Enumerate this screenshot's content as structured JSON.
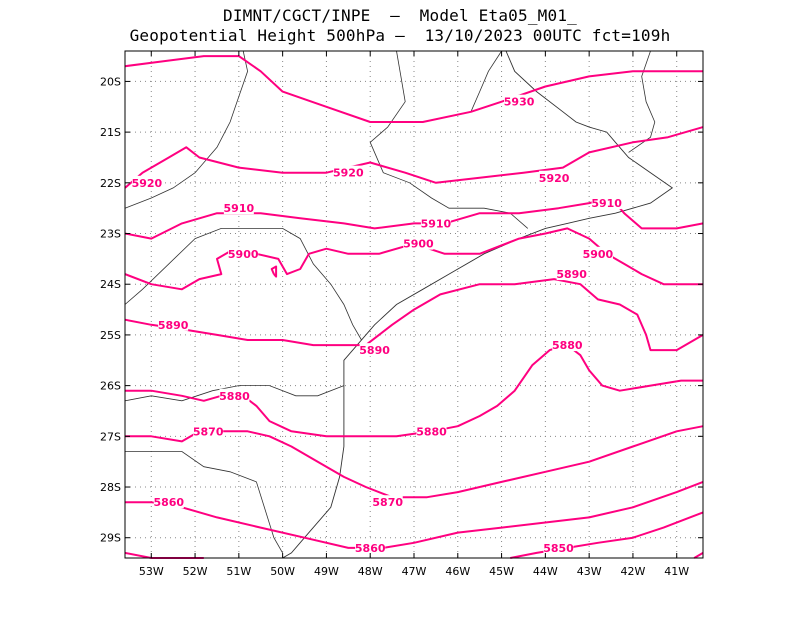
{
  "title_line1": "DIMNT/CGCT/INPE  –  Model Eta05_M01_",
  "title_line2": "Geopotential Height 500hPa –  13/10/2023 00UTC fct=109h",
  "colors": {
    "contour": "#ff0080",
    "coast": "#333333",
    "grid": "#888888",
    "frame": "#000000"
  },
  "map": {
    "lon_range": [
      -53.6,
      -40.4
    ],
    "lat_range": [
      -29.4,
      -19.4
    ],
    "lat_labels": [
      "20S",
      "21S",
      "22S",
      "23S",
      "24S",
      "25S",
      "26S",
      "27S",
      "28S",
      "29S"
    ],
    "lon_labels": [
      "53W",
      "52W",
      "51W",
      "50W",
      "49W",
      "48W",
      "47W",
      "46W",
      "45W",
      "44W",
      "43W",
      "42W",
      "41W"
    ],
    "contour_labels": [
      {
        "text": "5930",
        "lon": -44.6,
        "lat": -20.4
      },
      {
        "text": "5920",
        "lon": -53.1,
        "lat": -22.0
      },
      {
        "text": "5920",
        "lon": -48.5,
        "lat": -21.8
      },
      {
        "text": "5920",
        "lon": -43.8,
        "lat": -21.9
      },
      {
        "text": "5910",
        "lon": -51.0,
        "lat": -22.5
      },
      {
        "text": "5910",
        "lon": -46.5,
        "lat": -22.8
      },
      {
        "text": "5910",
        "lon": -42.6,
        "lat": -22.4
      },
      {
        "text": "5900",
        "lon": -50.9,
        "lat": -23.4
      },
      {
        "text": "5900",
        "lon": -46.9,
        "lat": -23.2
      },
      {
        "text": "5900",
        "lon": -42.8,
        "lat": -23.4
      },
      {
        "text": "5890",
        "lon": -43.4,
        "lat": -23.8
      },
      {
        "text": "5890",
        "lon": -52.5,
        "lat": -24.8
      },
      {
        "text": "5890",
        "lon": -47.9,
        "lat": -25.3
      },
      {
        "text": "5880",
        "lon": -43.5,
        "lat": -25.2
      },
      {
        "text": "5880",
        "lon": -51.1,
        "lat": -26.2
      },
      {
        "text": "5880",
        "lon": -46.6,
        "lat": -26.9
      },
      {
        "text": "5870",
        "lon": -51.7,
        "lat": -26.9
      },
      {
        "text": "5870",
        "lon": -47.6,
        "lat": -28.3
      },
      {
        "text": "5860",
        "lon": -52.6,
        "lat": -28.3
      },
      {
        "text": "5860",
        "lon": -48.0,
        "lat": -29.2
      },
      {
        "text": "5850",
        "lon": -43.7,
        "lat": -29.2
      }
    ],
    "contours": [
      {
        "level": 5930,
        "points": [
          [
            -53.6,
            -19.7
          ],
          [
            -52.7,
            -19.6
          ],
          [
            -51.8,
            -19.5
          ],
          [
            -51.0,
            -19.5
          ],
          [
            -50.5,
            -19.8
          ],
          [
            -50.0,
            -20.2
          ],
          [
            -49.0,
            -20.5
          ],
          [
            -48.0,
            -20.8
          ],
          [
            -46.8,
            -20.8
          ],
          [
            -45.7,
            -20.6
          ],
          [
            -45.0,
            -20.4
          ],
          [
            -44.0,
            -20.1
          ],
          [
            -43.0,
            -19.9
          ],
          [
            -42.0,
            -19.8
          ],
          [
            -41.0,
            -19.8
          ],
          [
            -40.4,
            -19.8
          ]
        ]
      },
      {
        "level": 5920,
        "points": [
          [
            -53.6,
            -22.1
          ],
          [
            -53.2,
            -21.8
          ],
          [
            -52.6,
            -21.5
          ],
          [
            -52.2,
            -21.3
          ],
          [
            -51.9,
            -21.5
          ],
          [
            -51.0,
            -21.7
          ],
          [
            -50.0,
            -21.8
          ],
          [
            -49.0,
            -21.8
          ],
          [
            -48.0,
            -21.6
          ],
          [
            -47.2,
            -21.8
          ],
          [
            -46.5,
            -22.0
          ],
          [
            -45.5,
            -21.9
          ],
          [
            -44.5,
            -21.8
          ],
          [
            -43.6,
            -21.7
          ],
          [
            -43.0,
            -21.4
          ],
          [
            -42.0,
            -21.2
          ],
          [
            -41.2,
            -21.1
          ],
          [
            -40.4,
            -20.9
          ]
        ]
      },
      {
        "level": 5910,
        "points": [
          [
            -53.6,
            -23.0
          ],
          [
            -53.0,
            -23.1
          ],
          [
            -52.3,
            -22.8
          ],
          [
            -51.5,
            -22.6
          ],
          [
            -50.5,
            -22.6
          ],
          [
            -49.6,
            -22.7
          ],
          [
            -48.6,
            -22.8
          ],
          [
            -47.9,
            -22.9
          ],
          [
            -47.0,
            -22.8
          ],
          [
            -46.3,
            -22.8
          ],
          [
            -45.5,
            -22.6
          ],
          [
            -44.6,
            -22.6
          ],
          [
            -43.7,
            -22.5
          ],
          [
            -43.0,
            -22.4
          ],
          [
            -42.5,
            -22.3
          ],
          [
            -42.2,
            -22.6
          ],
          [
            -41.8,
            -22.9
          ],
          [
            -41.0,
            -22.9
          ],
          [
            -40.4,
            -22.8
          ]
        ]
      },
      {
        "level": 5900,
        "points": [
          [
            -53.6,
            -23.8
          ],
          [
            -53.0,
            -24.0
          ],
          [
            -52.3,
            -24.1
          ],
          [
            -51.9,
            -23.9
          ],
          [
            -51.4,
            -23.8
          ],
          [
            -51.5,
            -23.5
          ],
          [
            -51.1,
            -23.3
          ],
          [
            -50.6,
            -23.4
          ],
          [
            -50.1,
            -23.5
          ],
          [
            -49.9,
            -23.8
          ],
          [
            -49.6,
            -23.7
          ],
          [
            -49.4,
            -23.4
          ],
          [
            -49.0,
            -23.3
          ],
          [
            -48.5,
            -23.4
          ],
          [
            -47.8,
            -23.4
          ],
          [
            -47.0,
            -23.2
          ],
          [
            -46.3,
            -23.4
          ],
          [
            -45.5,
            -23.4
          ],
          [
            -44.6,
            -23.1
          ],
          [
            -44.0,
            -23.0
          ],
          [
            -43.5,
            -22.9
          ],
          [
            -43.0,
            -23.1
          ],
          [
            -42.6,
            -23.4
          ],
          [
            -42.2,
            -23.6
          ],
          [
            -41.8,
            -23.8
          ],
          [
            -41.3,
            -24.0
          ],
          [
            -40.8,
            -24.0
          ],
          [
            -40.4,
            -24.0
          ]
        ]
      },
      {
        "level": 5890,
        "points": [
          [
            -53.6,
            -24.7
          ],
          [
            -53.0,
            -24.8
          ],
          [
            -52.2,
            -24.9
          ],
          [
            -51.5,
            -25.0
          ],
          [
            -50.8,
            -25.1
          ],
          [
            -50.0,
            -25.1
          ],
          [
            -49.3,
            -25.2
          ],
          [
            -48.6,
            -25.2
          ],
          [
            -48.1,
            -25.2
          ],
          [
            -47.8,
            -25.0
          ],
          [
            -47.5,
            -24.8
          ],
          [
            -47.0,
            -24.5
          ],
          [
            -46.4,
            -24.2
          ],
          [
            -45.5,
            -24.0
          ],
          [
            -44.7,
            -24.0
          ],
          [
            -43.8,
            -23.9
          ],
          [
            -43.2,
            -24.0
          ],
          [
            -42.8,
            -24.3
          ],
          [
            -42.3,
            -24.4
          ],
          [
            -41.9,
            -24.6
          ],
          [
            -41.7,
            -25.0
          ],
          [
            -41.6,
            -25.3
          ],
          [
            -41.0,
            -25.3
          ],
          [
            -40.4,
            -25.0
          ]
        ]
      },
      {
        "level": 5880,
        "points": [
          [
            -53.6,
            -26.1
          ],
          [
            -53.0,
            -26.1
          ],
          [
            -52.3,
            -26.2
          ],
          [
            -51.8,
            -26.3
          ],
          [
            -51.4,
            -26.2
          ],
          [
            -50.9,
            -26.2
          ],
          [
            -50.6,
            -26.4
          ],
          [
            -50.3,
            -26.7
          ],
          [
            -49.8,
            -26.9
          ],
          [
            -49.0,
            -27.0
          ],
          [
            -48.2,
            -27.0
          ],
          [
            -47.4,
            -27.0
          ],
          [
            -46.6,
            -26.9
          ],
          [
            -46.0,
            -26.8
          ],
          [
            -45.5,
            -26.6
          ],
          [
            -45.1,
            -26.4
          ],
          [
            -44.7,
            -26.1
          ],
          [
            -44.3,
            -25.6
          ],
          [
            -43.9,
            -25.3
          ],
          [
            -43.5,
            -25.2
          ],
          [
            -43.2,
            -25.4
          ],
          [
            -43.0,
            -25.7
          ],
          [
            -42.7,
            -26.0
          ],
          [
            -42.3,
            -26.1
          ],
          [
            -41.6,
            -26.0
          ],
          [
            -40.9,
            -25.9
          ],
          [
            -40.4,
            -25.9
          ]
        ]
      },
      {
        "level": 5870,
        "points": [
          [
            -53.6,
            -27.0
          ],
          [
            -53.0,
            -27.0
          ],
          [
            -52.3,
            -27.1
          ],
          [
            -51.9,
            -26.9
          ],
          [
            -51.4,
            -26.9
          ],
          [
            -50.8,
            -26.9
          ],
          [
            -50.3,
            -27.0
          ],
          [
            -49.8,
            -27.2
          ],
          [
            -49.2,
            -27.5
          ],
          [
            -48.6,
            -27.8
          ],
          [
            -48.1,
            -28.0
          ],
          [
            -47.5,
            -28.2
          ],
          [
            -46.7,
            -28.2
          ],
          [
            -46.0,
            -28.1
          ],
          [
            -45.0,
            -27.9
          ],
          [
            -44.0,
            -27.7
          ],
          [
            -43.0,
            -27.5
          ],
          [
            -42.0,
            -27.2
          ],
          [
            -41.0,
            -26.9
          ],
          [
            -40.4,
            -26.8
          ]
        ]
      },
      {
        "level": 5860,
        "points": [
          [
            -53.6,
            -28.3
          ],
          [
            -53.0,
            -28.3
          ],
          [
            -52.3,
            -28.4
          ],
          [
            -51.5,
            -28.6
          ],
          [
            -50.5,
            -28.8
          ],
          [
            -49.5,
            -29.0
          ],
          [
            -48.5,
            -29.2
          ],
          [
            -47.7,
            -29.2
          ],
          [
            -47.0,
            -29.1
          ],
          [
            -46.0,
            -28.9
          ],
          [
            -45.0,
            -28.8
          ],
          [
            -44.0,
            -28.7
          ],
          [
            -43.0,
            -28.6
          ],
          [
            -42.0,
            -28.4
          ],
          [
            -41.0,
            -28.1
          ],
          [
            -40.4,
            -27.9
          ]
        ]
      },
      {
        "level": 5850,
        "points": [
          [
            -53.6,
            -29.3
          ],
          [
            -53.0,
            -29.4
          ],
          [
            -52.3,
            -29.4
          ],
          [
            -51.8,
            -29.5
          ]
        ]
      },
      {
        "level": 5850,
        "points": [
          [
            -44.8,
            -29.5
          ],
          [
            -44.2,
            -29.3
          ],
          [
            -43.5,
            -29.2
          ],
          [
            -42.8,
            -29.1
          ],
          [
            -42.0,
            -29.0
          ],
          [
            -41.3,
            -28.8
          ],
          [
            -40.7,
            -28.6
          ],
          [
            -40.4,
            -28.5
          ]
        ]
      },
      {
        "level": 5850,
        "points": [
          [
            -40.6,
            -29.4
          ],
          [
            -40.4,
            -29.3
          ]
        ]
      },
      {
        "level": 5900,
        "points": [
          [
            -50.2,
            -23.8
          ],
          [
            -50.25,
            -23.7
          ],
          [
            -50.15,
            -23.65
          ],
          [
            -50.15,
            -23.85
          ],
          [
            -50.2,
            -23.8
          ]
        ]
      }
    ],
    "coastline": [
      [
        -44.9,
        -19.4
      ],
      [
        -44.7,
        -19.8
      ],
      [
        -44.2,
        -20.2
      ],
      [
        -43.6,
        -20.6
      ],
      [
        -43.3,
        -20.8
      ],
      [
        -43.0,
        -20.9
      ],
      [
        -42.6,
        -21.0
      ],
      [
        -42.4,
        -21.2
      ],
      [
        -42.1,
        -21.5
      ],
      [
        -41.6,
        -21.8
      ],
      [
        -41.1,
        -22.1
      ],
      [
        -41.6,
        -22.4
      ],
      [
        -42.4,
        -22.6
      ],
      [
        -43.0,
        -22.7
      ],
      [
        -43.5,
        -22.8
      ],
      [
        -44.0,
        -22.9
      ],
      [
        -44.6,
        -23.1
      ],
      [
        -45.4,
        -23.4
      ],
      [
        -46.2,
        -23.8
      ],
      [
        -46.8,
        -24.1
      ],
      [
        -47.4,
        -24.4
      ],
      [
        -47.9,
        -24.8
      ],
      [
        -48.3,
        -25.2
      ],
      [
        -48.6,
        -25.5
      ],
      [
        -48.6,
        -26.0
      ],
      [
        -48.6,
        -26.6
      ],
      [
        -48.6,
        -27.2
      ],
      [
        -48.7,
        -27.8
      ],
      [
        -48.9,
        -28.4
      ],
      [
        -49.4,
        -28.9
      ],
      [
        -49.8,
        -29.3
      ],
      [
        -50.0,
        -29.5
      ]
    ],
    "borders": [
      [
        [
          -53.6,
          -22.5
        ],
        [
          -53.0,
          -22.3
        ],
        [
          -52.5,
          -22.1
        ],
        [
          -52.0,
          -21.8
        ],
        [
          -51.5,
          -21.3
        ],
        [
          -51.2,
          -20.8
        ],
        [
          -51.0,
          -20.3
        ],
        [
          -50.8,
          -19.8
        ],
        [
          -50.9,
          -19.4
        ]
      ],
      [
        [
          -53.6,
          -24.4
        ],
        [
          -53.2,
          -24.1
        ],
        [
          -52.6,
          -23.6
        ],
        [
          -52.0,
          -23.1
        ],
        [
          -51.4,
          -22.9
        ],
        [
          -50.8,
          -22.9
        ],
        [
          -50.0,
          -22.9
        ],
        [
          -49.6,
          -23.1
        ],
        [
          -49.3,
          -23.6
        ],
        [
          -48.9,
          -24.0
        ],
        [
          -48.6,
          -24.4
        ],
        [
          -48.4,
          -24.8
        ],
        [
          -48.2,
          -25.1
        ]
      ],
      [
        [
          -53.6,
          -26.3
        ],
        [
          -53.0,
          -26.2
        ],
        [
          -52.3,
          -26.3
        ],
        [
          -51.6,
          -26.1
        ],
        [
          -51.0,
          -26.0
        ],
        [
          -50.3,
          -26.0
        ],
        [
          -49.7,
          -26.2
        ],
        [
          -49.2,
          -26.2
        ],
        [
          -48.6,
          -26.0
        ]
      ],
      [
        [
          -53.6,
          -27.3
        ],
        [
          -53.0,
          -27.3
        ],
        [
          -52.3,
          -27.3
        ],
        [
          -51.8,
          -27.6
        ],
        [
          -51.2,
          -27.7
        ],
        [
          -50.6,
          -27.9
        ],
        [
          -50.2,
          -29.0
        ],
        [
          -50.0,
          -29.3
        ]
      ],
      [
        [
          -47.4,
          -19.4
        ],
        [
          -47.3,
          -19.9
        ],
        [
          -47.2,
          -20.4
        ],
        [
          -47.6,
          -20.9
        ],
        [
          -48.0,
          -21.2
        ],
        [
          -47.7,
          -21.8
        ],
        [
          -47.1,
          -22.0
        ],
        [
          -46.6,
          -22.3
        ],
        [
          -46.2,
          -22.5
        ],
        [
          -45.4,
          -22.5
        ],
        [
          -44.8,
          -22.6
        ],
        [
          -44.4,
          -22.9
        ]
      ],
      [
        [
          -41.6,
          -19.4
        ],
        [
          -41.8,
          -19.9
        ],
        [
          -41.7,
          -20.4
        ],
        [
          -41.5,
          -20.8
        ],
        [
          -41.6,
          -21.1
        ],
        [
          -42.1,
          -21.4
        ]
      ],
      [
        [
          -45.0,
          -19.4
        ],
        [
          -45.3,
          -19.8
        ],
        [
          -45.5,
          -20.2
        ],
        [
          -45.7,
          -20.6
        ]
      ]
    ]
  }
}
